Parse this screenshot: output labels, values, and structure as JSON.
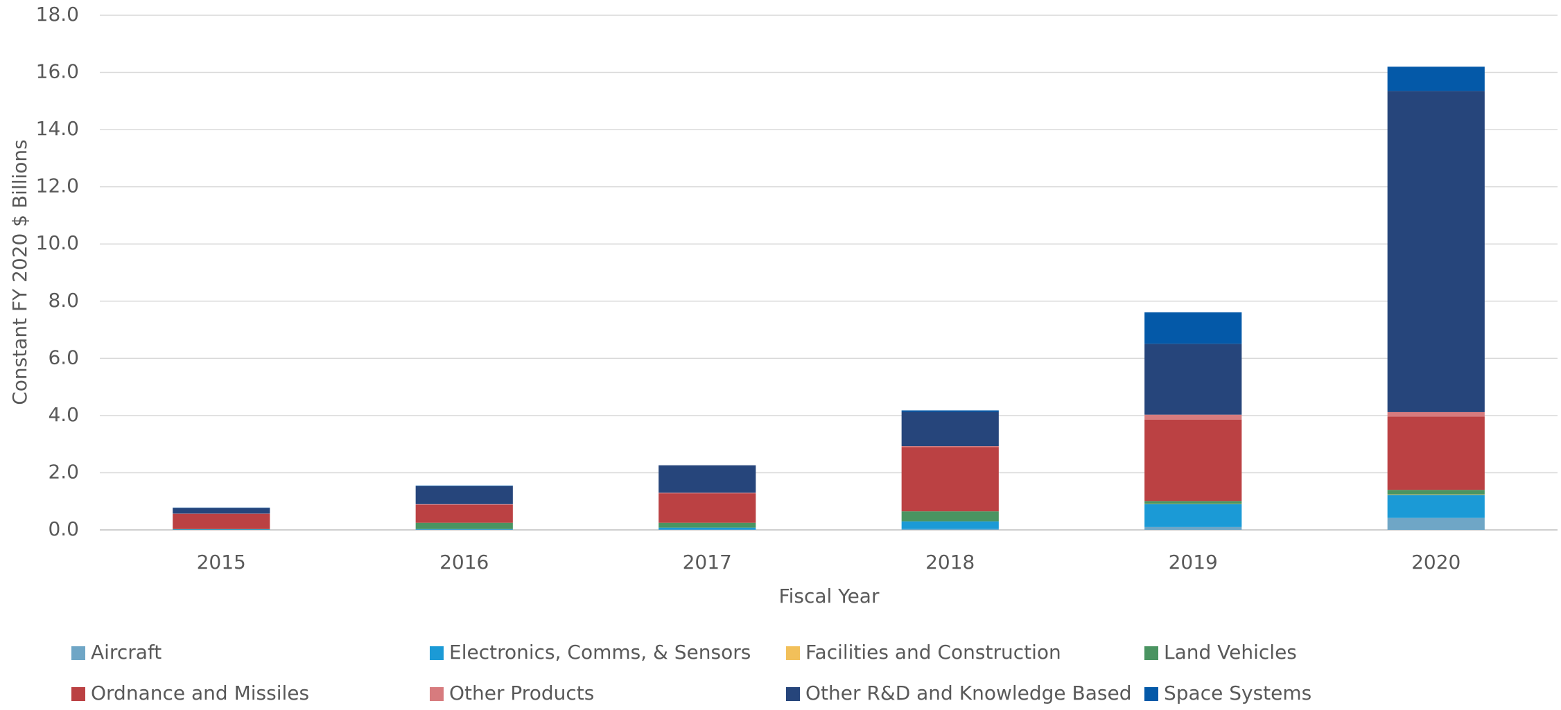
{
  "chart_data": {
    "type": "stacked_bar",
    "xlabel": "Fiscal Year",
    "ylabel": "Constant FY 2020 $ Billions",
    "categories": [
      "2015",
      "2016",
      "2017",
      "2018",
      "2019",
      "2020"
    ],
    "series": [
      {
        "name": "Aircraft",
        "color": "#6fa6c6",
        "values": [
          0,
          0.01,
          0.01,
          0.03,
          0.1,
          0.42
        ]
      },
      {
        "name": "Electronics, Comms, & Sensors",
        "color": "#1b9ad6",
        "values": [
          0.02,
          0.02,
          0.07,
          0.27,
          0.8,
          0.8
        ]
      },
      {
        "name": "Facilities and Construction",
        "color": "#f2c05a",
        "values": [
          0,
          0,
          0,
          0,
          0.01,
          0.02
        ]
      },
      {
        "name": "Land Vehicles",
        "color": "#4a9461",
        "values": [
          0.01,
          0.22,
          0.17,
          0.35,
          0.1,
          0.16
        ]
      },
      {
        "name": "Ordnance and Missiles",
        "color": "#bb4143",
        "values": [
          0.53,
          0.63,
          1.03,
          2.25,
          2.85,
          2.56
        ]
      },
      {
        "name": "Other Products",
        "color": "#d77b7e",
        "values": [
          0.01,
          0.02,
          0.02,
          0.03,
          0.17,
          0.16
        ]
      },
      {
        "name": "Other R&D and Knowledge Based",
        "color": "#26457b",
        "values": [
          0.2,
          0.63,
          0.96,
          1.2,
          2.48,
          11.23
        ]
      },
      {
        "name": "Space Systems",
        "color": "#0459a8",
        "values": [
          0.01,
          0.02,
          0.0,
          0.05,
          1.1,
          0.85
        ]
      }
    ],
    "ylim": [
      0,
      18
    ],
    "yticks": [
      {
        "value": 0,
        "label": "0.0"
      },
      {
        "value": 2,
        "label": "2.0"
      },
      {
        "value": 4,
        "label": "4.0"
      },
      {
        "value": 6,
        "label": "6.0"
      },
      {
        "value": 8,
        "label": "8.0"
      },
      {
        "value": 10,
        "label": "10.0"
      },
      {
        "value": 12,
        "label": "12.0"
      },
      {
        "value": 14,
        "label": "14.0"
      },
      {
        "value": 16,
        "label": "16.0"
      },
      {
        "value": 18,
        "label": "18.0"
      }
    ],
    "grid": true
  }
}
